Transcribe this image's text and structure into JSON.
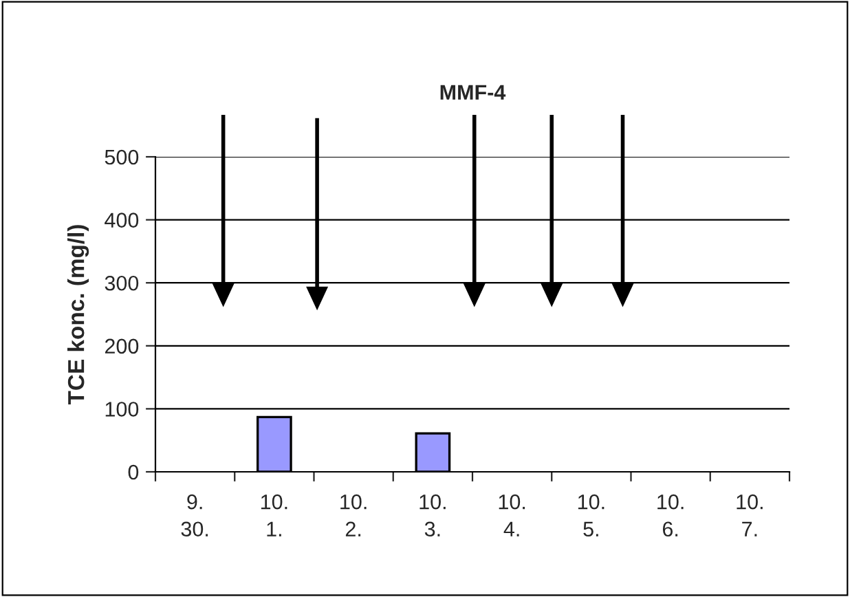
{
  "chart_data": {
    "type": "bar",
    "title": "MMF-4",
    "ylabel": "TCE konc. (mg/l)",
    "categories": [
      "9.\n30.",
      "10.\n1.",
      "10.\n2.",
      "10.\n3.",
      "10.\n4.",
      "10.\n5.",
      "10.\n6.",
      "10.\n7."
    ],
    "values": [
      null,
      87,
      null,
      61,
      null,
      null,
      null,
      null
    ],
    "color": "#9999ff",
    "ylim": [
      0,
      500
    ],
    "yticks": [
      0,
      100,
      200,
      300,
      400,
      500
    ],
    "grid": "y",
    "legend": false
  }
}
